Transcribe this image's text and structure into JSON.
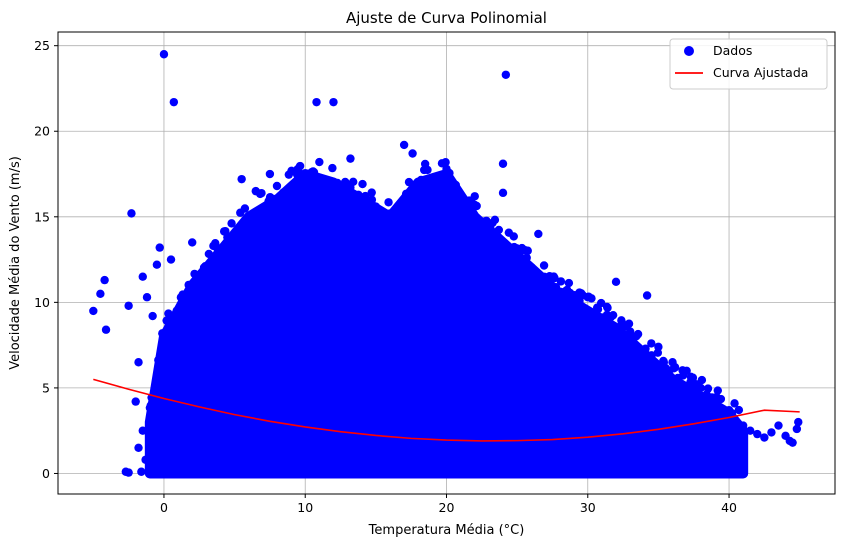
{
  "chart_data": {
    "type": "scatter",
    "title": "Ajuste de Curva Polinomial",
    "xlabel": "Temperatura Média (°C)",
    "ylabel": "Velocidade Média do Vento (m/s)",
    "xlim": [
      -7.5,
      47.5
    ],
    "ylim": [
      -1.2,
      25.8
    ],
    "xticks": [
      0,
      10,
      20,
      30,
      40
    ],
    "yticks": [
      0,
      5,
      10,
      15,
      20,
      25
    ],
    "grid": true,
    "legend_position": "top-right",
    "series": [
      {
        "name": "Dados",
        "kind": "scatter",
        "color": "#0000ff",
        "envelope_note_free": true,
        "dense_region": {
          "x_range": [
            -1,
            41
          ],
          "upper_envelope": [
            [
              -1,
              3
            ],
            [
              0,
              8
            ],
            [
              1,
              9.5
            ],
            [
              2,
              11
            ],
            [
              4,
              13
            ],
            [
              6,
              15
            ],
            [
              8,
              16
            ],
            [
              10,
              17.5
            ],
            [
              12,
              17
            ],
            [
              14,
              16
            ],
            [
              16,
              15
            ],
            [
              18,
              17
            ],
            [
              20,
              17.5
            ],
            [
              22,
              15
            ],
            [
              24,
              13.5
            ],
            [
              26,
              12
            ],
            [
              28,
              10.5
            ],
            [
              30,
              9.5
            ],
            [
              32,
              8.5
            ],
            [
              34,
              7
            ],
            [
              36,
              5.5
            ],
            [
              38,
              4.5
            ],
            [
              40,
              3.5
            ],
            [
              41,
              2.5
            ]
          ]
        },
        "points": [
          {
            "x": -5,
            "y": 9.5
          },
          {
            "x": -4.5,
            "y": 10.5
          },
          {
            "x": -4.2,
            "y": 11.3
          },
          {
            "x": -4.1,
            "y": 8.4
          },
          {
            "x": -2.3,
            "y": 15.2
          },
          {
            "x": -2.5,
            "y": 9.8
          },
          {
            "x": -1.5,
            "y": 11.5
          },
          {
            "x": -1.2,
            "y": 10.3
          },
          {
            "x": -0.5,
            "y": 12.2
          },
          {
            "x": -0.3,
            "y": 13.2
          },
          {
            "x": 0.5,
            "y": 12.5
          },
          {
            "x": -0.8,
            "y": 9.2
          },
          {
            "x": -1.8,
            "y": 6.5
          },
          {
            "x": -2,
            "y": 4.2
          },
          {
            "x": -1.5,
            "y": 2.5
          },
          {
            "x": -1.8,
            "y": 1.5
          },
          {
            "x": -1.3,
            "y": 0.8
          },
          {
            "x": -1.6,
            "y": 0.1
          },
          {
            "x": -2.7,
            "y": 0.1
          },
          {
            "x": -2.5,
            "y": 0.05
          },
          {
            "x": 0,
            "y": 24.5
          },
          {
            "x": 0.7,
            "y": 21.7
          },
          {
            "x": 10.8,
            "y": 21.7
          },
          {
            "x": 12,
            "y": 21.7
          },
          {
            "x": 24.2,
            "y": 23.3
          },
          {
            "x": 17,
            "y": 19.2
          },
          {
            "x": 17.6,
            "y": 18.7
          },
          {
            "x": 13.2,
            "y": 18.4
          },
          {
            "x": 11,
            "y": 18.2
          },
          {
            "x": 9.5,
            "y": 17.8
          },
          {
            "x": 24,
            "y": 18.1
          },
          {
            "x": 20,
            "y": 17.8
          },
          {
            "x": 22,
            "y": 16.2
          },
          {
            "x": 24,
            "y": 16.4
          },
          {
            "x": 26.5,
            "y": 14
          },
          {
            "x": 30,
            "y": 10.3
          },
          {
            "x": 32,
            "y": 11.2
          },
          {
            "x": 34.2,
            "y": 10.4
          },
          {
            "x": 36,
            "y": 6.5
          },
          {
            "x": 38,
            "y": 5
          },
          {
            "x": 39,
            "y": 4.2
          },
          {
            "x": 40,
            "y": 3.7
          },
          {
            "x": 41,
            "y": 2.8
          },
          {
            "x": 41.5,
            "y": 2.5
          },
          {
            "x": 42,
            "y": 2.3
          },
          {
            "x": 42.5,
            "y": 2.1
          },
          {
            "x": 43,
            "y": 2.4
          },
          {
            "x": 43.5,
            "y": 2.8
          },
          {
            "x": 44,
            "y": 2.2
          },
          {
            "x": 44.3,
            "y": 1.9
          },
          {
            "x": 44.5,
            "y": 1.8
          },
          {
            "x": 44.8,
            "y": 2.6
          },
          {
            "x": 44.9,
            "y": 3
          },
          {
            "x": 2,
            "y": 13.5
          },
          {
            "x": 5.5,
            "y": 17.2
          },
          {
            "x": 7.5,
            "y": 17.5
          },
          {
            "x": 6.5,
            "y": 16.5
          },
          {
            "x": 3.5,
            "y": 13.3
          },
          {
            "x": 4.5,
            "y": 13.8
          },
          {
            "x": 8,
            "y": 16.8
          },
          {
            "x": 15,
            "y": 15.6
          },
          {
            "x": 19,
            "y": 16.8
          },
          {
            "x": 21,
            "y": 15.5
          },
          {
            "x": 28,
            "y": 10.4
          },
          {
            "x": 33,
            "y": 8.3
          },
          {
            "x": 35,
            "y": 7.4
          },
          {
            "x": 37,
            "y": 6
          }
        ]
      },
      {
        "name": "Curva Ajustada",
        "kind": "line",
        "color": "#ff0000",
        "x": [
          -5,
          -2.5,
          0,
          2.5,
          5,
          7.5,
          10,
          12.5,
          15,
          17.5,
          20,
          22.5,
          25,
          27.5,
          30,
          32.5,
          35,
          37.5,
          40,
          42.5,
          45
        ],
        "y": [
          5.5,
          4.92,
          4.38,
          3.89,
          3.44,
          3.05,
          2.72,
          2.44,
          2.22,
          2.05,
          1.95,
          1.9,
          1.92,
          1.98,
          2.12,
          2.32,
          2.58,
          2.9,
          3.27,
          3.7,
          3.6
        ]
      }
    ]
  }
}
